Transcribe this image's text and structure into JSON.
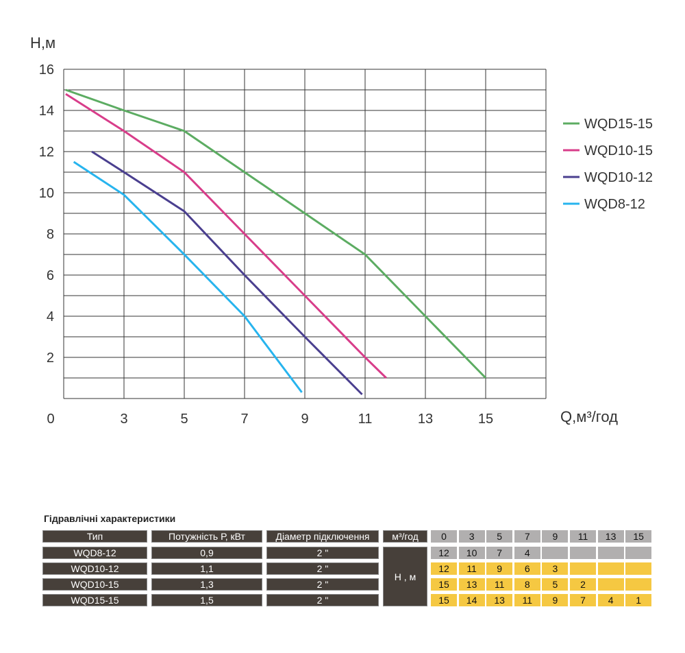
{
  "chart_data": {
    "type": "line",
    "ylabel": "H,м",
    "xlabel": "Q,м³/год",
    "x_ticks": [
      0,
      3,
      5,
      7,
      9,
      11,
      13,
      15
    ],
    "y_ticks": [
      2,
      4,
      6,
      8,
      10,
      12,
      14,
      16
    ],
    "y_zero_label": "0",
    "ylim": [
      0,
      16
    ],
    "grid": true,
    "legend_position": "right",
    "series": [
      {
        "name": "WQD15-15",
        "color": "#5cac62",
        "x": [
          0.1,
          3,
          5,
          7,
          9,
          11,
          13,
          15
        ],
        "y": [
          15,
          14,
          13,
          11,
          9,
          7,
          4,
          1
        ]
      },
      {
        "name": "WQD10-15",
        "color": "#d83d8a",
        "x": [
          0.1,
          3,
          5,
          7,
          9,
          11,
          11.7
        ],
        "y": [
          14.8,
          13,
          11,
          8,
          5,
          2,
          1
        ]
      },
      {
        "name": "WQD10-12",
        "color": "#4a3f8f",
        "x": [
          1.4,
          3,
          5,
          7,
          9,
          10.9
        ],
        "y": [
          12,
          11,
          9.1,
          6,
          3,
          0.2
        ]
      },
      {
        "name": "WQD8-12",
        "color": "#27b4ee",
        "x": [
          0.5,
          3,
          5,
          7,
          8.9
        ],
        "y": [
          11.5,
          9.9,
          7,
          4,
          0.3
        ]
      }
    ]
  },
  "table": {
    "title": "Гідравлічні характеристики",
    "headers": [
      "Тип",
      "Потужність Р, кВт",
      "Діаметр підключення",
      "м³/год"
    ],
    "flow_values": [
      "0",
      "3",
      "5",
      "7",
      "9",
      "11",
      "13",
      "15"
    ],
    "head_label": "Н , м",
    "rows": [
      {
        "type": "WQD8-12",
        "power": "0,9",
        "diameter": "2 \"",
        "heads": [
          "12",
          "10",
          "7",
          "4",
          "",
          "",
          "",
          ""
        ],
        "style": "gray"
      },
      {
        "type": "WQD10-12",
        "power": "1,1",
        "diameter": "2 \"",
        "heads": [
          "12",
          "11",
          "9",
          "6",
          "3",
          "",
          "",
          ""
        ],
        "style": "yellow"
      },
      {
        "type": "WQD10-15",
        "power": "1,3",
        "diameter": "2 \"",
        "heads": [
          "15",
          "13",
          "11",
          "8",
          "5",
          "2",
          "",
          ""
        ],
        "style": "yellow"
      },
      {
        "type": "WQD15-15",
        "power": "1,5",
        "diameter": "2 \"",
        "heads": [
          "15",
          "14",
          "13",
          "11",
          "9",
          "7",
          "4",
          "1"
        ],
        "style": "yellow"
      }
    ]
  }
}
